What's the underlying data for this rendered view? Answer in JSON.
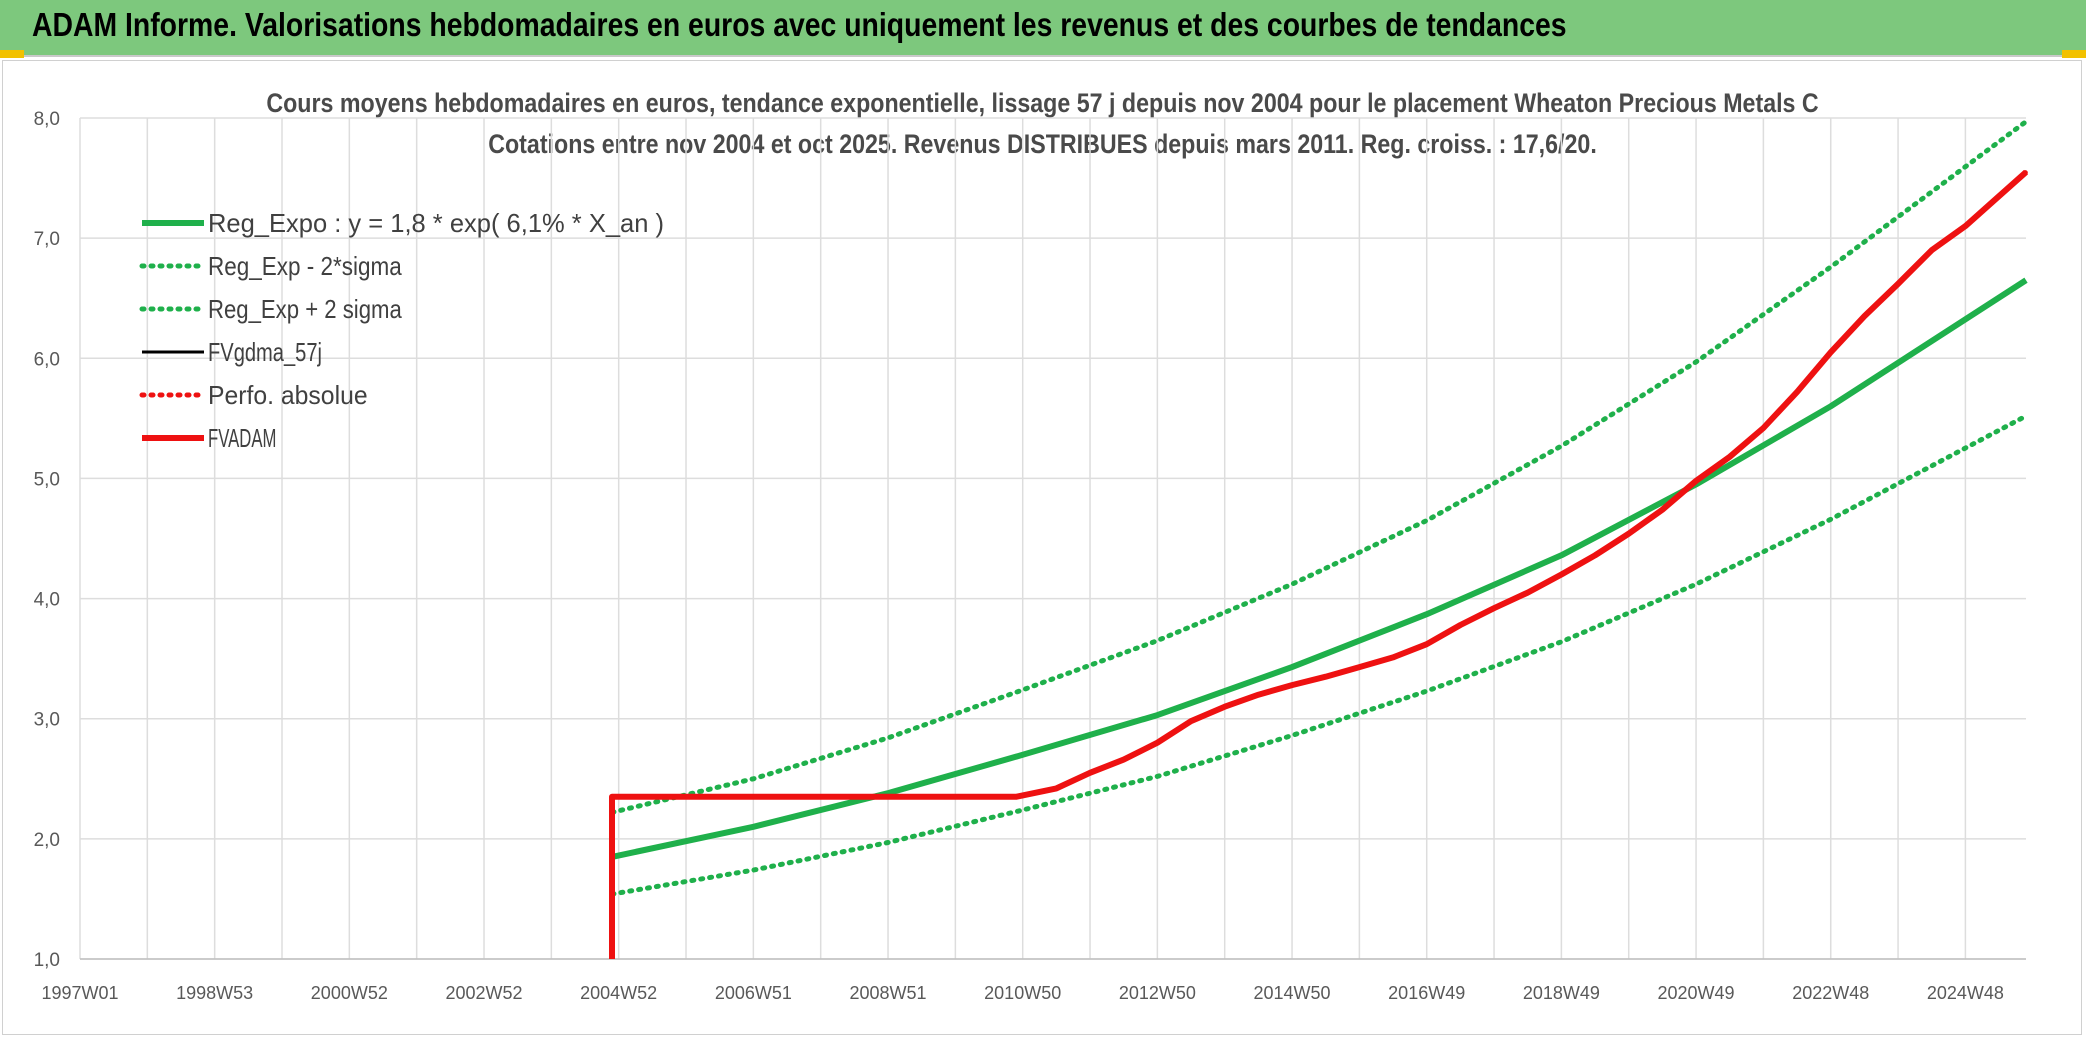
{
  "banner": {
    "title": "ADAM Informe. Valorisations hebdomadaires en euros avec uniquement les revenus et des courbes de tendances"
  },
  "colors": {
    "banner_bg": "#7dc87d",
    "trend_green": "#1fb04b",
    "fvadam_red": "#ee1111",
    "fvgdma_black": "#000000",
    "grid": "#dddddd"
  },
  "chart_data": {
    "type": "line",
    "title": "Cours moyens hebdomadaires en euros, tendance exponentielle, lissage 57 j depuis nov 2004 pour le placement Wheaton Precious Metals C",
    "subtitle": "Cotations entre nov 2004 et oct 2025. Revenus DISTRIBUES depuis mars 2011. Reg. croiss. : 17,6/20.",
    "xlabel": "",
    "ylabel": "",
    "ylim": [
      1.0,
      8.0
    ],
    "xlim": [
      1997.0,
      2025.9
    ],
    "y_ticks": [
      "1,0",
      "2,0",
      "3,0",
      "4,0",
      "5,0",
      "6,0",
      "7,0",
      "8,0"
    ],
    "x_tick_labels": [
      {
        "year": 1997.0,
        "label": "1997W01"
      },
      {
        "year": 1999.0,
        "label": "1998W53"
      },
      {
        "year": 2001.0,
        "label": "2000W52"
      },
      {
        "year": 2003.0,
        "label": "2002W52"
      },
      {
        "year": 2005.0,
        "label": "2004W52"
      },
      {
        "year": 2007.0,
        "label": "2006W51"
      },
      {
        "year": 2009.0,
        "label": "2008W51"
      },
      {
        "year": 2011.0,
        "label": "2010W50"
      },
      {
        "year": 2013.0,
        "label": "2012W50"
      },
      {
        "year": 2015.0,
        "label": "2014W50"
      },
      {
        "year": 2017.0,
        "label": "2016W49"
      },
      {
        "year": 2019.0,
        "label": "2018W49"
      },
      {
        "year": 2021.0,
        "label": "2020W49"
      },
      {
        "year": 2023.0,
        "label": "2022W48"
      },
      {
        "year": 2025.0,
        "label": "2024W48"
      }
    ],
    "legend_position": "top-left",
    "series": [
      {
        "name": "Reg_Expo : y = 1,8 * exp( 6,1% *  X_an )",
        "style": "solid-thick",
        "color": "#1fb04b",
        "x": [
          2004.9,
          2007.0,
          2009.0,
          2011.0,
          2013.0,
          2015.0,
          2017.0,
          2019.0,
          2021.0,
          2023.0,
          2025.9
        ],
        "y": [
          1.85,
          2.1,
          2.38,
          2.7,
          3.03,
          3.43,
          3.87,
          4.36,
          4.95,
          5.6,
          6.65
        ]
      },
      {
        "name": "Reg_Exp - 2*sigma",
        "style": "dotted",
        "color": "#1fb04b",
        "x": [
          2004.9,
          2007.0,
          2009.0,
          2011.0,
          2013.0,
          2015.0,
          2017.0,
          2019.0,
          2021.0,
          2023.0,
          2025.9
        ],
        "y": [
          1.54,
          1.74,
          1.97,
          2.24,
          2.52,
          2.86,
          3.23,
          3.64,
          4.12,
          4.66,
          5.52
        ]
      },
      {
        "name": "Reg_Exp + 2 sigma",
        "style": "dotted",
        "color": "#1fb04b",
        "x": [
          2004.9,
          2007.0,
          2009.0,
          2011.0,
          2013.0,
          2015.0,
          2017.0,
          2019.0,
          2021.0,
          2023.0,
          2025.9
        ],
        "y": [
          2.22,
          2.5,
          2.84,
          3.24,
          3.65,
          4.12,
          4.65,
          5.27,
          5.97,
          6.76,
          7.97
        ]
      },
      {
        "name": "FVgdma_57j",
        "style": "solid",
        "color": "#000000",
        "x": [
          2004.9,
          2010.9,
          2011.5,
          2012.0,
          2012.5,
          2013.0,
          2013.5,
          2014.0,
          2014.5,
          2015.0,
          2015.5,
          2016.0,
          2016.5,
          2017.0,
          2017.5,
          2018.0,
          2018.5,
          2019.0,
          2019.5,
          2020.0,
          2020.5,
          2021.0,
          2021.5,
          2022.0,
          2022.5,
          2023.0,
          2023.5,
          2024.0,
          2024.5,
          2025.0,
          2025.4,
          2025.9
        ],
        "y": [
          2.35,
          2.35,
          2.42,
          2.55,
          2.66,
          2.8,
          2.98,
          3.1,
          3.2,
          3.28,
          3.35,
          3.43,
          3.51,
          3.62,
          3.78,
          3.92,
          4.05,
          4.2,
          4.36,
          4.54,
          4.74,
          4.98,
          5.18,
          5.42,
          5.72,
          6.05,
          6.35,
          6.62,
          6.9,
          7.1,
          7.3,
          7.55
        ]
      },
      {
        "name": "Perfo. absolue",
        "style": "dotted",
        "color": "#ee1111",
        "x": [
          2004.9,
          2010.9,
          2011.5,
          2012.0,
          2012.5,
          2013.0,
          2013.5,
          2014.0,
          2014.5,
          2015.0,
          2015.5,
          2016.0,
          2016.5,
          2017.0,
          2017.5,
          2018.0,
          2018.5,
          2019.0,
          2019.5,
          2020.0,
          2020.5,
          2021.0,
          2021.5,
          2022.0,
          2022.5,
          2023.0,
          2023.5,
          2024.0,
          2024.5,
          2025.0,
          2025.4,
          2025.9
        ],
        "y": [
          2.35,
          2.35,
          2.42,
          2.55,
          2.66,
          2.8,
          2.98,
          3.1,
          3.2,
          3.28,
          3.35,
          3.43,
          3.51,
          3.62,
          3.78,
          3.92,
          4.05,
          4.2,
          4.36,
          4.54,
          4.74,
          4.98,
          5.18,
          5.42,
          5.72,
          6.05,
          6.35,
          6.62,
          6.9,
          7.1,
          7.3,
          7.55
        ]
      },
      {
        "name": "FVADAM",
        "style": "solid-thick",
        "color": "#ee1111",
        "x": [
          2004.9,
          2004.9,
          2010.9,
          2011.5,
          2012.0,
          2012.5,
          2013.0,
          2013.5,
          2014.0,
          2014.5,
          2015.0,
          2015.5,
          2016.0,
          2016.5,
          2017.0,
          2017.5,
          2018.0,
          2018.5,
          2019.0,
          2019.5,
          2020.0,
          2020.5,
          2021.0,
          2021.5,
          2022.0,
          2022.5,
          2023.0,
          2023.5,
          2024.0,
          2024.5,
          2025.0,
          2025.4,
          2025.9
        ],
        "y": [
          1.0,
          2.35,
          2.35,
          2.42,
          2.55,
          2.66,
          2.8,
          2.98,
          3.1,
          3.2,
          3.28,
          3.35,
          3.43,
          3.51,
          3.62,
          3.78,
          3.92,
          4.05,
          4.2,
          4.36,
          4.54,
          4.74,
          4.98,
          5.18,
          5.42,
          5.72,
          6.05,
          6.35,
          6.62,
          6.9,
          7.1,
          7.3,
          7.55
        ]
      }
    ]
  }
}
